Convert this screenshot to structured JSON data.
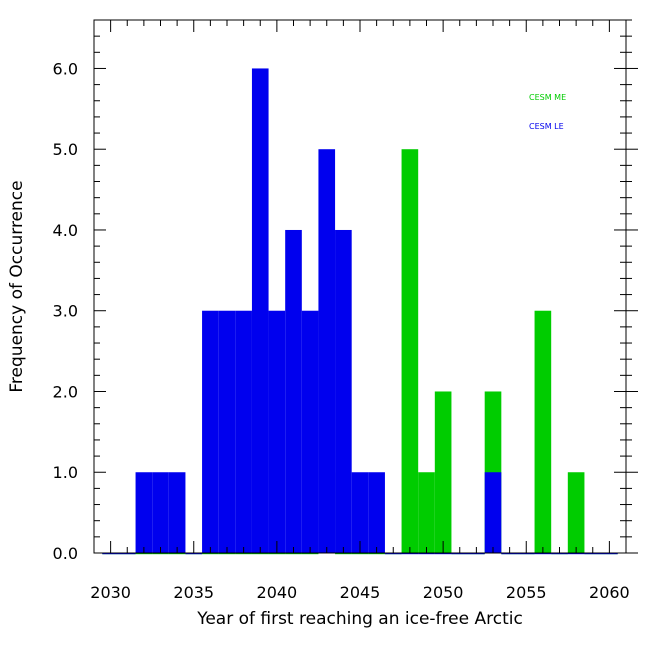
{
  "chart_data": {
    "type": "bar",
    "xlabel": "Year of first reaching an ice-free Arctic",
    "ylabel": "Frequency of Occurrence",
    "xlim": [
      2029,
      2061
    ],
    "ylim": [
      0,
      6.6
    ],
    "x_ticks": [
      2030,
      2035,
      2040,
      2045,
      2050,
      2055,
      2060
    ],
    "x_tick_labels": [
      "2030",
      "2035",
      "2040",
      "2045",
      "2050",
      "2055",
      "2060"
    ],
    "y_ticks": [
      0,
      1,
      2,
      3,
      4,
      5,
      6
    ],
    "y_tick_labels": [
      "0.0",
      "1.0",
      "2.0",
      "3.0",
      "4.0",
      "5.0",
      "6.0"
    ],
    "grid": false,
    "legend_position": "top-right",
    "years": [
      2030,
      2031,
      2032,
      2033,
      2034,
      2035,
      2036,
      2037,
      2038,
      2039,
      2040,
      2041,
      2042,
      2043,
      2044,
      2045,
      2046,
      2047,
      2048,
      2049,
      2050,
      2051,
      2052,
      2053,
      2054,
      2055,
      2056,
      2057,
      2058,
      2059,
      2060
    ],
    "series": [
      {
        "name": "CESM ME",
        "color": "#00cc00",
        "values": [
          0,
          0,
          0,
          0,
          0,
          0,
          0,
          0,
          0,
          0,
          0,
          0,
          0,
          1,
          0,
          0,
          0,
          0,
          5,
          1,
          2,
          0,
          0,
          2,
          0,
          0,
          3,
          0,
          1,
          0,
          0
        ]
      },
      {
        "name": "CESM LE",
        "color": "#0000ee",
        "values": [
          0,
          0,
          1,
          1,
          1,
          0,
          3,
          3,
          3,
          6,
          3,
          4,
          3,
          5,
          4,
          1,
          1,
          0,
          0,
          0,
          0,
          0,
          0,
          1,
          0,
          0,
          0,
          0,
          0,
          0,
          0
        ]
      }
    ]
  }
}
